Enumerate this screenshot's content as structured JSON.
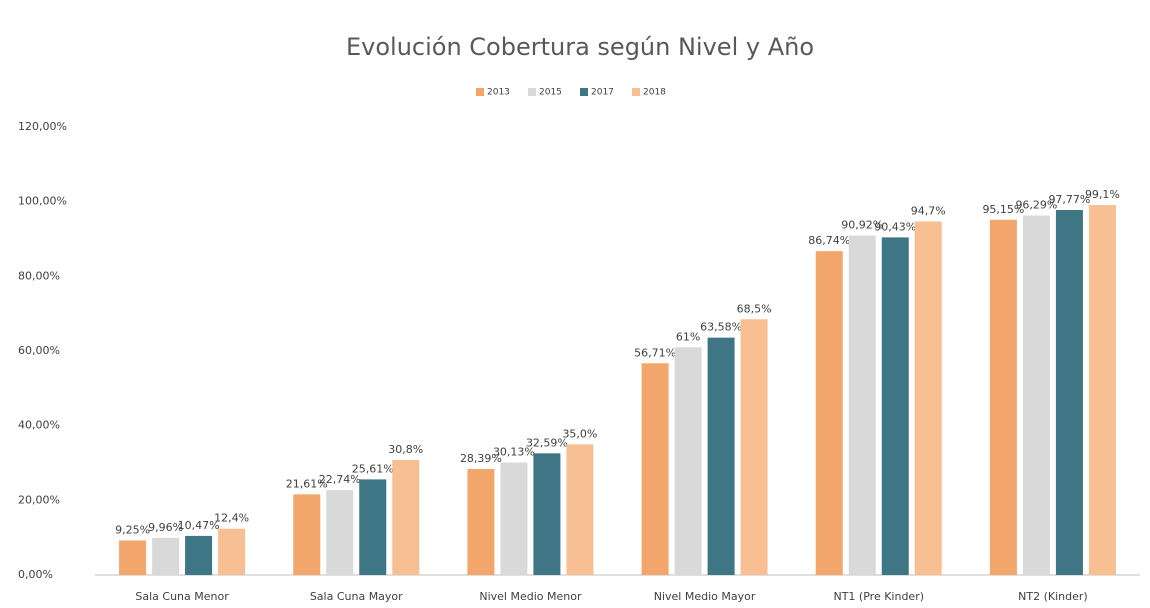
{
  "chart_data": {
    "type": "bar",
    "title": "Evolución Cobertura según Nivel y Año",
    "categories": [
      "Sala Cuna Menor",
      "Sala Cuna Mayor",
      "Nivel Medio Menor",
      "Nivel Medio Mayor",
      "NT1 (Pre Kinder)",
      "NT2 (Kinder)"
    ],
    "series": [
      {
        "name": "2013",
        "color": "#f2a66b",
        "values": [
          9.25,
          21.61,
          28.39,
          56.71,
          86.74,
          95.15
        ],
        "value_labels": [
          "9,25%",
          "21,61%",
          "28,39%",
          "56,71%",
          "86,74%",
          "95,15%"
        ]
      },
      {
        "name": "2015",
        "color": "#d9d9d9",
        "values": [
          9.96,
          22.74,
          30.13,
          61,
          90.92,
          96.29
        ],
        "value_labels": [
          "9,96%",
          "22,74%",
          "30,13%",
          "61%",
          "90,92%",
          "96,29%"
        ]
      },
      {
        "name": "2017",
        "color": "#3e7686",
        "values": [
          10.47,
          25.61,
          32.59,
          63.58,
          90.43,
          97.77
        ],
        "value_labels": [
          "10,47%",
          "25,61%",
          "32,59%",
          "63,58%",
          "90,43%",
          "97,77%"
        ]
      },
      {
        "name": "2018",
        "color": "#f7bf92",
        "values": [
          12.4,
          30.8,
          35.0,
          68.5,
          94.7,
          99.1
        ],
        "value_labels": [
          "12,4%",
          "30,8%",
          "35,0%",
          "68,5%",
          "94,7%",
          "99,1%"
        ]
      }
    ],
    "ylim": [
      0,
      120
    ],
    "yticks": [
      {
        "value": 0,
        "label": "0,00%"
      },
      {
        "value": 20,
        "label": "20,00%"
      },
      {
        "value": 40,
        "label": "40,00%"
      },
      {
        "value": 60,
        "label": "60,00%"
      },
      {
        "value": 80,
        "label": "80,00%"
      },
      {
        "value": 100,
        "label": "100,00%"
      },
      {
        "value": 120,
        "label": "120,00%"
      }
    ],
    "grid": false,
    "legend": "top"
  }
}
